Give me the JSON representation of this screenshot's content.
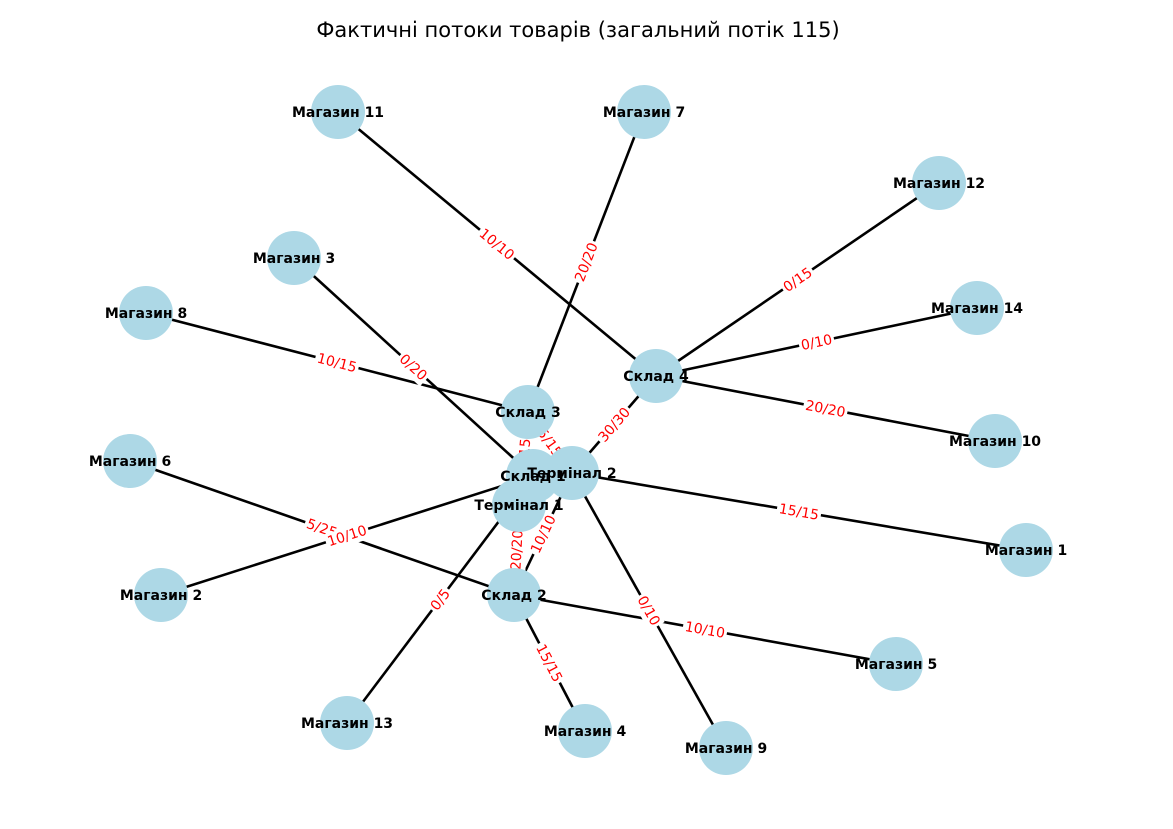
{
  "title": "Фактичні потоки товарів (загальний потік 115)",
  "colors": {
    "node_fill": "#add8e6",
    "edge": "#000000",
    "edge_label": "#ff0000",
    "text": "#000000"
  },
  "nodes": [
    {
      "id": "t1",
      "label": "Термінал 1"
    },
    {
      "id": "t2",
      "label": "Термінал 2"
    },
    {
      "id": "s1",
      "label": "Склад 1"
    },
    {
      "id": "s2",
      "label": "Склад 2"
    },
    {
      "id": "s3",
      "label": "Склад 3"
    },
    {
      "id": "s4",
      "label": "Склад 4"
    },
    {
      "id": "m1",
      "label": "Магазин 1"
    },
    {
      "id": "m2",
      "label": "Магазин 2"
    },
    {
      "id": "m3",
      "label": "Магазин 3"
    },
    {
      "id": "m4",
      "label": "Магазин 4"
    },
    {
      "id": "m5",
      "label": "Магазин 5"
    },
    {
      "id": "m6",
      "label": "Магазин 6"
    },
    {
      "id": "m7",
      "label": "Магазин 7"
    },
    {
      "id": "m8",
      "label": "Магазин 8"
    },
    {
      "id": "m9",
      "label": "Магазин 9"
    },
    {
      "id": "m10",
      "label": "Магазин 10"
    },
    {
      "id": "m11",
      "label": "Магазин 11"
    },
    {
      "id": "m12",
      "label": "Магазин 12"
    },
    {
      "id": "m13",
      "label": "Магазин 13"
    },
    {
      "id": "m14",
      "label": "Магазин 14"
    }
  ],
  "edges": [
    {
      "from": "s4",
      "to": "m11",
      "label": "10/10"
    },
    {
      "from": "s3",
      "to": "m7",
      "label": "20/20"
    },
    {
      "from": "s4",
      "to": "m12",
      "label": "0/15"
    },
    {
      "from": "s4",
      "to": "m14",
      "label": "0/10"
    },
    {
      "from": "s4",
      "to": "m10",
      "label": "20/20"
    },
    {
      "from": "s1",
      "to": "m3",
      "label": "0/20"
    },
    {
      "from": "s3",
      "to": "m8",
      "label": "10/15"
    },
    {
      "from": "t2",
      "to": "s4",
      "label": "30/30"
    },
    {
      "from": "t2",
      "to": "s3",
      "label": "5/15"
    },
    {
      "from": "t1",
      "to": "s3",
      "label": "15/15"
    },
    {
      "from": "t2",
      "to": "s2",
      "label": "10/10"
    },
    {
      "from": "t1",
      "to": "s2",
      "label": "20/20"
    },
    {
      "from": "t2",
      "to": "m1",
      "label": "15/15"
    },
    {
      "from": "t2",
      "to": "m9",
      "label": "0/10"
    },
    {
      "from": "s2",
      "to": "m6",
      "label": "5/25"
    },
    {
      "from": "s1",
      "to": "m2",
      "label": "10/10"
    },
    {
      "from": "s2",
      "to": "m5",
      "label": "10/10"
    },
    {
      "from": "s2",
      "to": "m4",
      "label": "15/15"
    },
    {
      "from": "s1",
      "to": "m13",
      "label": "0/5"
    }
  ]
}
